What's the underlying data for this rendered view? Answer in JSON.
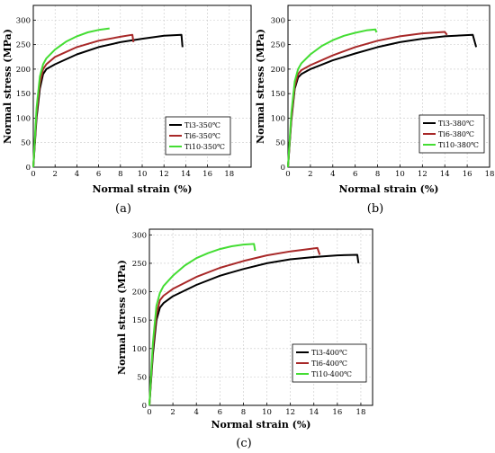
{
  "chart_data": [
    {
      "type": "line",
      "panel_label": "(a)",
      "xlabel": "Normal strain (%)",
      "ylabel": "Normal stress (MPa)",
      "xlim": [
        0,
        20
      ],
      "ylim": [
        0,
        330
      ],
      "xticks": [
        0,
        2,
        4,
        6,
        8,
        10,
        12,
        14,
        16,
        18
      ],
      "yticks": [
        0,
        50,
        100,
        150,
        200,
        250,
        300
      ],
      "grid": true,
      "legend_position": "bottom-right",
      "series": [
        {
          "name": "Ti3-350℃",
          "color": "#000000",
          "x": [
            0,
            0.3,
            0.6,
            0.9,
            1.2,
            2,
            4,
            6,
            8,
            10,
            12,
            13.6,
            13.7
          ],
          "y": [
            0,
            100,
            160,
            190,
            200,
            210,
            230,
            245,
            255,
            262,
            268,
            270,
            245
          ]
        },
        {
          "name": "Ti6-350℃",
          "color": "#a82828",
          "x": [
            0,
            0.3,
            0.6,
            0.9,
            1.2,
            2,
            4,
            6,
            8,
            9.1,
            9.2
          ],
          "y": [
            0,
            110,
            170,
            200,
            210,
            225,
            245,
            258,
            266,
            270,
            255
          ]
        },
        {
          "name": "Ti10-350℃",
          "color": "#44dd33",
          "x": [
            0,
            0.3,
            0.6,
            0.9,
            1.2,
            2,
            3,
            4,
            5,
            6,
            7.0
          ],
          "y": [
            0,
            120,
            185,
            210,
            222,
            240,
            256,
            267,
            275,
            280,
            283
          ]
        }
      ]
    },
    {
      "type": "line",
      "panel_label": "(b)",
      "xlabel": "Normal strain (%)",
      "ylabel": "Normal stress (MPa)",
      "xlim": [
        0,
        18
      ],
      "ylim": [
        0,
        330
      ],
      "xticks": [
        0,
        2,
        4,
        6,
        8,
        10,
        12,
        14,
        16,
        18
      ],
      "yticks": [
        0,
        50,
        100,
        150,
        200,
        250,
        300
      ],
      "grid": true,
      "legend_position": "bottom-right",
      "series": [
        {
          "name": "Ti3-380℃",
          "color": "#000000",
          "x": [
            0,
            0.3,
            0.6,
            0.9,
            1.2,
            2,
            4,
            6,
            8,
            10,
            12,
            14,
            16.5,
            16.8
          ],
          "y": [
            0,
            95,
            160,
            183,
            190,
            200,
            218,
            232,
            245,
            255,
            262,
            267,
            270,
            245
          ]
        },
        {
          "name": "Ti6-380℃",
          "color": "#a82828",
          "x": [
            0,
            0.3,
            0.6,
            0.9,
            1.2,
            2,
            4,
            6,
            8,
            10,
            12,
            14.0,
            14.2
          ],
          "y": [
            0,
            100,
            165,
            190,
            198,
            208,
            228,
            245,
            258,
            267,
            273,
            276,
            270
          ]
        },
        {
          "name": "Ti10-380℃",
          "color": "#44dd33",
          "x": [
            0,
            0.3,
            0.6,
            0.9,
            1.2,
            2,
            3,
            4,
            5,
            6,
            7,
            7.8,
            7.9
          ],
          "y": [
            0,
            110,
            175,
            200,
            212,
            230,
            247,
            259,
            268,
            274,
            279,
            281,
            275
          ]
        }
      ]
    },
    {
      "type": "line",
      "panel_label": "(c)",
      "xlabel": "Normal strain (%)",
      "ylabel": "Normal stress (MPa)",
      "xlim": [
        0,
        19
      ],
      "ylim": [
        0,
        310
      ],
      "xticks": [
        0,
        2,
        4,
        6,
        8,
        10,
        12,
        14,
        16,
        18
      ],
      "yticks": [
        0,
        50,
        100,
        150,
        200,
        250,
        300
      ],
      "grid": true,
      "legend_position": "bottom-right",
      "series": [
        {
          "name": "Ti3-400℃",
          "color": "#000000",
          "x": [
            0,
            0.3,
            0.6,
            0.9,
            1.2,
            2,
            4,
            6,
            8,
            10,
            12,
            14,
            16,
            17.7,
            17.8
          ],
          "y": [
            0,
            90,
            150,
            172,
            180,
            192,
            212,
            228,
            240,
            250,
            257,
            261,
            264,
            265,
            250
          ]
        },
        {
          "name": "Ti6-400℃",
          "color": "#a82828",
          "x": [
            0,
            0.3,
            0.6,
            0.9,
            1.2,
            2,
            4,
            6,
            8,
            10,
            12,
            14.3,
            14.5
          ],
          "y": [
            0,
            100,
            160,
            185,
            193,
            205,
            226,
            242,
            254,
            264,
            271,
            277,
            265
          ]
        },
        {
          "name": "Ti10-400℃",
          "color": "#44dd33",
          "x": [
            0,
            0.3,
            0.6,
            0.9,
            1.2,
            2,
            3,
            4,
            5,
            6,
            7,
            8,
            8.9,
            9.0
          ],
          "y": [
            0,
            110,
            175,
            198,
            210,
            228,
            246,
            259,
            268,
            275,
            280,
            283,
            284,
            272
          ]
        }
      ]
    }
  ]
}
